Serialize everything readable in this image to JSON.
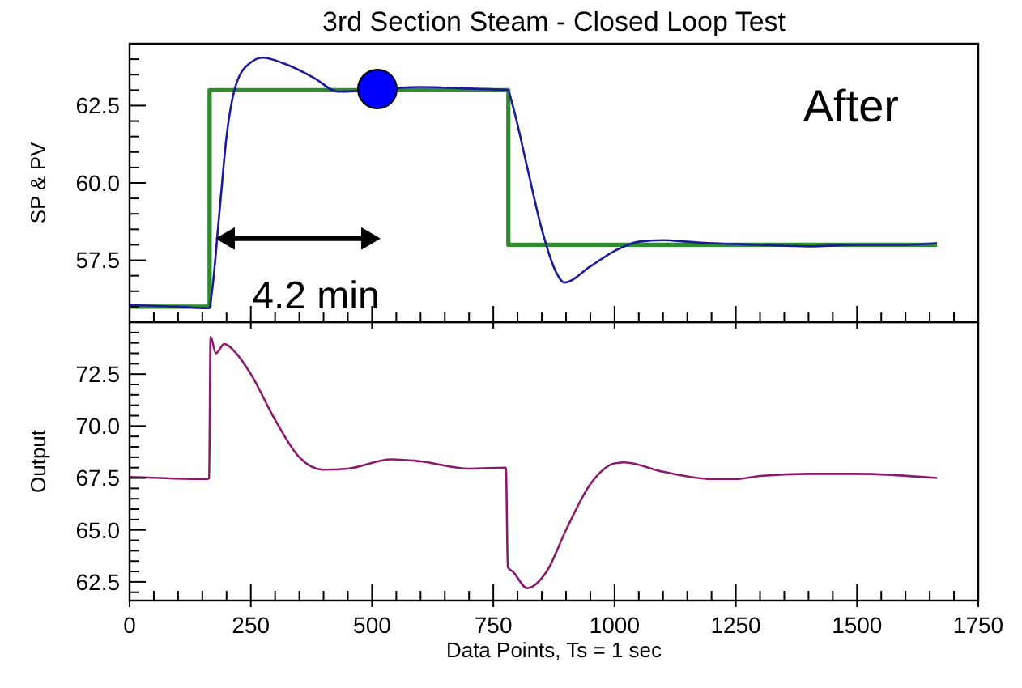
{
  "chart_data": [
    {
      "type": "line",
      "title": "3rd Section Steam - Closed Loop Test",
      "ylabel": "SP & PV",
      "tick_labels": "y",
      "annotations": [
        "After",
        "4.2 min"
      ],
      "xlim": [
        0,
        1750
      ],
      "ylim": [
        55.5,
        64.5
      ],
      "xticks": [
        0,
        {
          "value": 50,
          "label": null
        },
        {
          "value": 100,
          "label": null
        },
        {
          "value": 150,
          "label": null
        },
        {
          "value": 200,
          "label": null
        },
        250,
        {
          "value": 300,
          "label": null
        },
        {
          "value": 350,
          "label": null
        },
        {
          "value": 400,
          "label": null
        },
        {
          "value": 450,
          "label": null
        },
        500,
        {
          "value": 550,
          "label": null
        },
        {
          "value": 600,
          "label": null
        },
        {
          "value": 650,
          "label": null
        },
        {
          "value": 700,
          "label": null
        },
        750,
        {
          "value": 800,
          "label": null
        },
        {
          "value": 850,
          "label": null
        },
        {
          "value": 900,
          "label": null
        },
        {
          "value": 950,
          "label": null
        },
        1000,
        {
          "value": 1050,
          "label": null
        },
        {
          "value": 1100,
          "label": null
        },
        {
          "value": 1150,
          "label": null
        },
        {
          "value": 1200,
          "label": null
        },
        1250,
        {
          "value": 1300,
          "label": null
        },
        {
          "value": 1350,
          "label": null
        },
        {
          "value": 1400,
          "label": null
        },
        {
          "value": 1450,
          "label": null
        },
        1500,
        {
          "value": 1550,
          "label": null
        },
        {
          "value": 1600,
          "label": null
        },
        {
          "value": 1650,
          "label": null
        },
        {
          "value": 1700,
          "label": null
        },
        1750
      ],
      "yticks": [
        {
          "value": 56,
          "label": null
        },
        {
          "value": 56.5,
          "label": null
        },
        {
          "value": 57,
          "label": null
        },
        57.5,
        {
          "value": 58,
          "label": null
        },
        {
          "value": 58.5,
          "label": null
        },
        {
          "value": 59,
          "label": null
        },
        {
          "value": 59.5,
          "label": null
        },
        "60.0",
        {
          "value": 60.5,
          "label": null
        },
        {
          "value": 61,
          "label": null
        },
        {
          "value": 61.5,
          "label": null
        },
        {
          "value": 62,
          "label": null
        },
        62.5,
        {
          "value": 63,
          "label": null
        },
        {
          "value": 63.5,
          "label": null
        },
        {
          "value": 64,
          "label": null
        }
      ],
      "series": [
        {
          "type": "step",
          "color": "#2e8b2e",
          "x": [
            0,
            165,
            781,
            1665
          ],
          "values": [
            56.0,
            63.0,
            58.0,
            58.0
          ]
        },
        {
          "color": "#1a1a9a",
          "x": [
            0,
            100,
            164,
            170,
            185,
            200,
            220,
            250,
            275,
            320,
            380,
            430,
            500,
            600,
            700,
            780,
            790,
            820,
            850,
            880,
            896,
            950,
            1000,
            1050,
            1100,
            1150,
            1200,
            1300,
            1400,
            1500,
            1600,
            1665
          ],
          "values": [
            56.05,
            56.0,
            55.95,
            56.5,
            59.0,
            61.5,
            63.2,
            63.9,
            64.05,
            63.85,
            63.4,
            62.95,
            null,
            63.1,
            63.05,
            63.0,
            62.5,
            60.5,
            58.5,
            57.1,
            56.78,
            57.3,
            57.8,
            58.1,
            58.15,
            58.1,
            58.05,
            58.0,
            57.95,
            58.0,
            58.0,
            58.05
          ]
        }
      ]
    },
    {
      "type": "line",
      "ylabel": "Output",
      "xlabel": "Data Points, Ts = 1 sec",
      "xlim": [
        0,
        1750
      ],
      "ylim": [
        61.6,
        75
      ],
      "xticks": [
        0,
        {
          "value": 50,
          "label": null
        },
        {
          "value": 100,
          "label": null
        },
        {
          "value": 150,
          "label": null
        },
        {
          "value": 200,
          "label": null
        },
        250,
        {
          "value": 300,
          "label": null
        },
        {
          "value": 350,
          "label": null
        },
        {
          "value": 400,
          "label": null
        },
        {
          "value": 450,
          "label": null
        },
        500,
        {
          "value": 550,
          "label": null
        },
        {
          "value": 600,
          "label": null
        },
        {
          "value": 650,
          "label": null
        },
        {
          "value": 700,
          "label": null
        },
        750,
        {
          "value": 800,
          "label": null
        },
        {
          "value": 850,
          "label": null
        },
        {
          "value": 900,
          "label": null
        },
        {
          "value": 950,
          "label": null
        },
        1000,
        {
          "value": 1050,
          "label": null
        },
        {
          "value": 1100,
          "label": null
        },
        {
          "value": 1150,
          "label": null
        },
        {
          "value": 1200,
          "label": null
        },
        1250,
        {
          "value": 1300,
          "label": null
        },
        {
          "value": 1350,
          "label": null
        },
        {
          "value": 1400,
          "label": null
        },
        {
          "value": 1450,
          "label": null
        },
        1500,
        {
          "value": 1550,
          "label": null
        },
        {
          "value": 1600,
          "label": null
        },
        {
          "value": 1650,
          "label": null
        },
        {
          "value": 1700,
          "label": null
        },
        1750
      ],
      "yticks": [
        {
          "value": 62,
          "label": null
        },
        62.5,
        {
          "value": 63,
          "label": null
        },
        {
          "value": 63.5,
          "label": null
        },
        {
          "value": 64,
          "label": null
        },
        {
          "value": 64.5,
          "label": null
        },
        "65.0",
        {
          "value": 65.5,
          "label": null
        },
        {
          "value": 66,
          "label": null
        },
        {
          "value": 66.5,
          "label": null
        },
        {
          "value": 67,
          "label": null
        },
        67.5,
        {
          "value": 68,
          "label": null
        },
        {
          "value": 68.5,
          "label": null
        },
        {
          "value": 69,
          "label": null
        },
        {
          "value": 69.5,
          "label": null
        },
        "70.0",
        {
          "value": 70.5,
          "label": null
        },
        {
          "value": 71,
          "label": null
        },
        {
          "value": 71.5,
          "label": null
        },
        {
          "value": 72,
          "label": null
        },
        72.5,
        {
          "value": 73,
          "label": null
        },
        {
          "value": 73.5,
          "label": null
        },
        {
          "value": 74,
          "label": null
        },
        {
          "value": 74.5,
          "label": null
        }
      ],
      "series": [
        {
          "color": "#8b1a6b",
          "x": [
            0,
            160,
            164,
            167,
            178,
            195,
            220,
            250,
            300,
            350,
            400,
            450,
            540,
            600,
            700,
            776,
            780,
            790,
            820,
            860,
            900,
            950,
            1000,
            1020,
            1100,
            1200,
            1250,
            1300,
            1400,
            1500,
            1665
          ],
          "values": [
            67.55,
            67.45,
            67.5,
            74.3,
            73.5,
            73.95,
            73.5,
            72.5,
            70.3,
            68.5,
            67.9,
            67.95,
            68.4,
            68.3,
            67.95,
            68.0,
            63.2,
            63.0,
            62.2,
            63.0,
            65.0,
            67.2,
            68.2,
            68.25,
            67.8,
            67.45,
            67.45,
            67.6,
            67.7,
            67.7,
            67.5
          ]
        }
      ]
    }
  ]
}
